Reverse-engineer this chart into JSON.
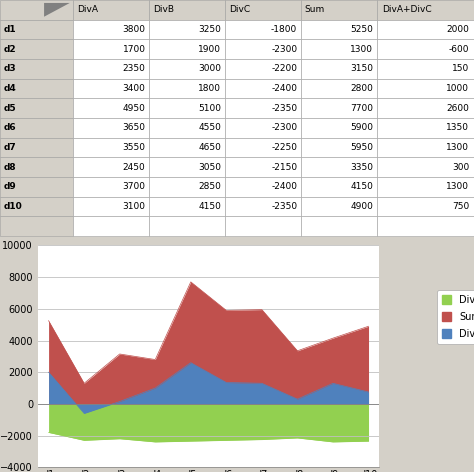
{
  "categories": [
    "d1",
    "d2",
    "d3",
    "d4",
    "d5",
    "d6",
    "d7",
    "d8",
    "d9",
    "d10"
  ],
  "DivA": [
    3800,
    1700,
    2350,
    3400,
    4950,
    3650,
    3550,
    2450,
    3700,
    3100
  ],
  "DivB": [
    3250,
    1900,
    3000,
    1800,
    5100,
    4550,
    4650,
    3050,
    2850,
    4150
  ],
  "DivC": [
    -1800,
    -2300,
    -2200,
    -2400,
    -2350,
    -2300,
    -2250,
    -2150,
    -2400,
    -2350
  ],
  "Sum": [
    5250,
    1300,
    3150,
    2800,
    7700,
    5900,
    5950,
    3350,
    4150,
    4900
  ],
  "DivA_DivC": [
    2000,
    -600,
    150,
    1000,
    2600,
    1350,
    1300,
    300,
    1300,
    750
  ],
  "color_DivC": "#92d050",
  "color_Sum": "#c0504d",
  "color_DivA_DivC": "#4f81bd",
  "legend_labels": [
    "DivC",
    "Sum",
    "DivA+DivC"
  ],
  "ylim": [
    -4000,
    10000
  ],
  "yticks": [
    -4000,
    -2000,
    0,
    2000,
    4000,
    6000,
    8000,
    10000
  ],
  "table_headers": [
    "",
    "DivA",
    "DivB",
    "DivC",
    "Sum",
    "DivA+DivC"
  ],
  "row_labels": [
    "d1",
    "d2",
    "d3",
    "d4",
    "d5",
    "d6",
    "d7",
    "d8",
    "d9",
    "d10"
  ],
  "table_col_A": [
    "3800",
    "1700",
    "2350",
    "3400",
    "4950",
    "3650",
    "3550",
    "2450",
    "3700",
    "3100"
  ],
  "table_col_B": [
    "3250",
    "1900",
    "3000",
    "1800",
    "5100",
    "4550",
    "4650",
    "3050",
    "2850",
    "4150"
  ],
  "table_col_C": [
    "-1800",
    "-2300",
    "-2200",
    "-2400",
    "-2350",
    "-2300",
    "-2250",
    "-2150",
    "-2400",
    "-2350"
  ],
  "table_col_E": [
    "5250",
    "1300",
    "3150",
    "2800",
    "7700",
    "5900",
    "5950",
    "3350",
    "4150",
    "4900"
  ],
  "table_col_F": [
    "2000",
    "-600",
    "150",
    "1000",
    "2600",
    "1350",
    "1300",
    "300",
    "1300",
    "750"
  ],
  "grid_color": "#c0c0c0",
  "excel_bg": "#ffffff",
  "header_bg": "#d4d0c8",
  "cell_border": "#c0c0c0",
  "col_header_bg": "#d4d0c8",
  "row_num_col_bg": "#d4d0c8",
  "selected_cell_bg": "#ffff99"
}
